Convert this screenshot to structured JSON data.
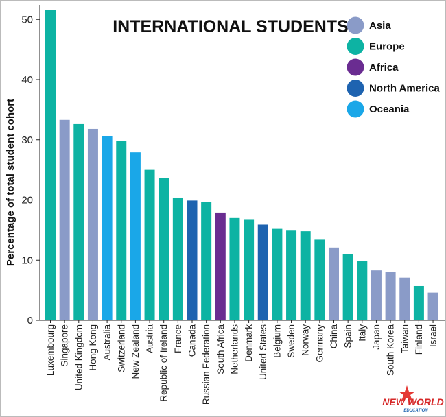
{
  "chart_data": {
    "type": "bar",
    "title": "INTERNATIONAL STUDENTS",
    "ylabel": "Percentage of total student cohort",
    "xlabel": "",
    "ylim": [
      0,
      53
    ],
    "yticks": [
      0,
      10,
      20,
      30,
      40,
      50
    ],
    "grid": false,
    "legend_position": "top-right",
    "legend": [
      {
        "name": "Asia",
        "color": "#8a9bc8"
      },
      {
        "name": "Europe",
        "color": "#0db3a3"
      },
      {
        "name": "Africa",
        "color": "#6a2c91"
      },
      {
        "name": "North America",
        "color": "#1e63b0"
      },
      {
        "name": "Oceania",
        "color": "#1aa7e8"
      }
    ],
    "categories": [
      "Luxembourg",
      "Singapore",
      "United Kingdom",
      "Hong Kong",
      "Australia",
      "Switzerland",
      "New Zealand",
      "Austria",
      "Republic of Ireland",
      "France",
      "Canada",
      "Russian Federation",
      "South Africa",
      "Netherlands",
      "Denmark",
      "United States",
      "Belgium",
      "Sweden",
      "Norway",
      "Germany",
      "China",
      "Spain",
      "Italy",
      "Japan",
      "South Korea",
      "Taiwan",
      "Finland",
      "Israel"
    ],
    "values": [
      51.6,
      33.3,
      32.6,
      31.8,
      30.6,
      29.8,
      27.9,
      25.0,
      23.6,
      20.4,
      19.9,
      19.7,
      17.9,
      17.0,
      16.7,
      15.9,
      15.2,
      14.9,
      14.8,
      13.4,
      12.1,
      11.0,
      9.8,
      8.3,
      8.0,
      7.1,
      5.7,
      4.6
    ],
    "regions": [
      "Europe",
      "Asia",
      "Europe",
      "Asia",
      "Oceania",
      "Europe",
      "Oceania",
      "Europe",
      "Europe",
      "Europe",
      "North America",
      "Europe",
      "Africa",
      "Europe",
      "Europe",
      "North America",
      "Europe",
      "Europe",
      "Europe",
      "Europe",
      "Asia",
      "Europe",
      "Europe",
      "Asia",
      "Asia",
      "Asia",
      "Europe",
      "Asia"
    ]
  },
  "logo": {
    "line1": "NEW WORLD",
    "line2": "EDUCATION"
  }
}
